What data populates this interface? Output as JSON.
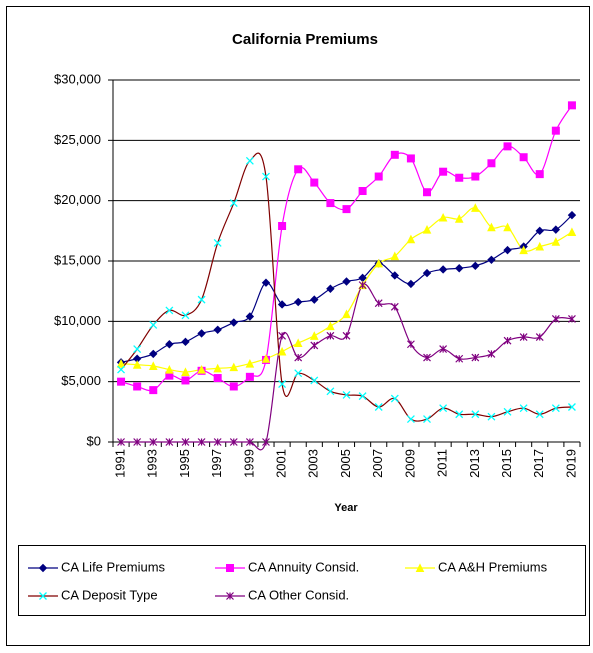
{
  "chart_data": {
    "type": "line",
    "title": "California Premiums",
    "x_label": "Year",
    "categories": [
      "1991",
      null,
      "1993",
      null,
      "1995",
      null,
      "1997",
      null,
      "1999",
      null,
      "2001",
      null,
      "2003",
      null,
      "2005",
      null,
      "2007",
      null,
      "2009",
      null,
      "2011",
      null,
      "2013",
      null,
      "2015",
      null,
      "2017",
      null,
      "2019"
    ],
    "ylim": [
      0,
      30000
    ],
    "yticks": [
      {
        "value": 0,
        "label": "$0"
      },
      {
        "value": 5000,
        "label": "$5,000"
      },
      {
        "value": 10000,
        "label": "$10,000"
      },
      {
        "value": 15000,
        "label": "$15,000"
      },
      {
        "value": 20000,
        "label": "$20,000"
      },
      {
        "value": 25000,
        "label": "$25,000"
      },
      {
        "value": 30000,
        "label": "$30,000"
      }
    ],
    "grid": true,
    "legend": "bottom",
    "series": [
      {
        "name": "CA Life Premiums",
        "color": "#000080",
        "marker": "diamond",
        "marker_color": "#000080",
        "values": [
          6600,
          6900,
          7300,
          8100,
          8300,
          9000,
          9300,
          9900,
          10400,
          13200,
          11400,
          11600,
          11800,
          12700,
          13300,
          13600,
          14800,
          13800,
          13100,
          14000,
          14300,
          14400,
          14600,
          15100,
          15900,
          16200,
          17500,
          17600,
          18800
        ]
      },
      {
        "name": "CA Annuity Consid.",
        "color": "#ff00ff",
        "marker": "square",
        "marker_color": "#ff00ff",
        "values": [
          5000,
          4600,
          4300,
          5500,
          5100,
          5900,
          5300,
          4600,
          5400,
          6800,
          17900,
          22600,
          21500,
          19800,
          19300,
          20800,
          22000,
          23800,
          23500,
          20700,
          22400,
          21900,
          22000,
          23100,
          24500,
          23600,
          22200,
          25800,
          27900
        ]
      },
      {
        "name": "CA A&H Premiums",
        "color": "#ffff00",
        "marker": "triangle",
        "marker_color": "#ffff00",
        "values": [
          6500,
          6400,
          6300,
          6000,
          5800,
          6000,
          6100,
          6200,
          6500,
          6900,
          7500,
          8200,
          8800,
          9600,
          10600,
          13000,
          14800,
          15400,
          16800,
          17600,
          18600,
          18500,
          19400,
          17800,
          17800,
          15900,
          16200,
          16600,
          17400
        ]
      },
      {
        "name": "CA Deposit Type",
        "color": "#800000",
        "marker": "x",
        "marker_color": "#00ffff",
        "values": [
          6000,
          7700,
          9700,
          10900,
          10500,
          11800,
          16500,
          19800,
          23300,
          22000,
          4800,
          5700,
          5100,
          4200,
          3900,
          3800,
          2900,
          3600,
          1900,
          1900,
          2800,
          2300,
          2300,
          2100,
          2500,
          2800,
          2300,
          2800,
          2900
        ]
      },
      {
        "name": "CA Other Consid.",
        "color": "#800080",
        "marker": "star",
        "marker_color": "#800080",
        "values": [
          0,
          0,
          0,
          0,
          0,
          0,
          0,
          0,
          0,
          0,
          8800,
          7000,
          8000,
          8800,
          8800,
          13000,
          11500,
          11200,
          8100,
          7000,
          7700,
          6900,
          7000,
          7300,
          8400,
          8700,
          8700,
          10200,
          10200
        ]
      }
    ]
  }
}
